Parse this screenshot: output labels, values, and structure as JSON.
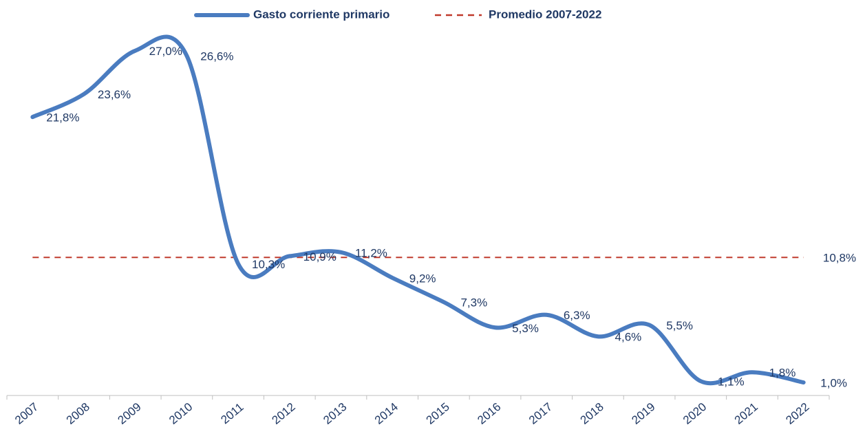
{
  "chart_data": {
    "type": "line",
    "categories": [
      "2007",
      "2008",
      "2009",
      "2010",
      "2011",
      "2012",
      "2013",
      "2014",
      "2015",
      "2016",
      "2017",
      "2018",
      "2019",
      "2020",
      "2021",
      "2022"
    ],
    "series": [
      {
        "name": "Gasto corriente primario",
        "color": "#4a7cc0",
        "values": [
          21.8,
          23.6,
          27.0,
          26.6,
          10.3,
          10.9,
          11.2,
          9.2,
          7.3,
          5.3,
          6.3,
          4.6,
          5.5,
          1.1,
          1.8,
          1.0
        ],
        "value_labels": [
          "21,8%",
          "23,6%",
          "27,0%",
          "26,6%",
          "10,3%",
          "10,9%",
          "11,2%",
          "9,2%",
          "7,3%",
          "5,3%",
          "6,3%",
          "4,6%",
          "5,5%",
          "1,1%",
          "1,8%",
          "1,0%"
        ]
      }
    ],
    "average": {
      "name": "Promedio 2007-2022",
      "value": 10.8,
      "label": "10,8%",
      "color": "#c0392b"
    },
    "ylim": [
      0,
      30
    ]
  }
}
